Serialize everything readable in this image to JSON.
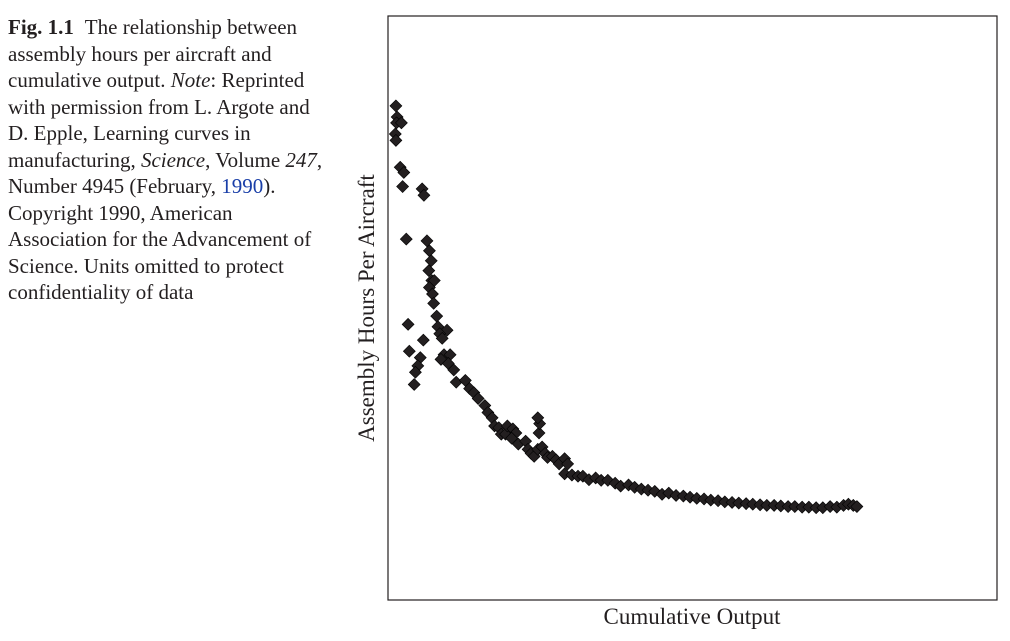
{
  "caption": {
    "label": "Fig. 1.1",
    "text_1": "The relationship between assembly hours per aircraft and cumulative output. ",
    "note_label": "Note",
    "text_2": ": Reprinted with permission from L. Argote and D. Epple, Learning curves in manufacturing, ",
    "journal": "Science",
    "text_3": ", Volume ",
    "volume": "247",
    "text_4": ", Number 4945 (February, ",
    "year_link": "1990",
    "text_5": "). Copyright 1990, American Association for the Advancement of Science. Units omitted to protect confidentiality of data",
    "link_color": "#1a3fa8"
  },
  "chart_data": {
    "type": "scatter",
    "xlabel": "Cumulative Output",
    "ylabel": "Assembly Hours Per Aircraft",
    "xlim": [
      0,
      100
    ],
    "ylim": [
      0,
      100
    ],
    "grid": false,
    "legend": "none",
    "marker": "diamond",
    "marker_color": "#231f20",
    "points": [
      [
        1.3,
        84.6
      ],
      [
        1.5,
        82.7
      ],
      [
        1.4,
        81.7
      ],
      [
        2.2,
        81.7
      ],
      [
        1.2,
        79.8
      ],
      [
        1.3,
        78.7
      ],
      [
        2.0,
        74.1
      ],
      [
        2.6,
        73.2
      ],
      [
        2.4,
        70.8
      ],
      [
        5.6,
        70.4
      ],
      [
        5.9,
        69.3
      ],
      [
        3.0,
        61.8
      ],
      [
        6.4,
        61.5
      ],
      [
        6.8,
        59.8
      ],
      [
        7.1,
        58.1
      ],
      [
        6.7,
        56.4
      ],
      [
        7.2,
        54.7
      ],
      [
        7.6,
        54.7
      ],
      [
        6.8,
        53.5
      ],
      [
        7.3,
        52.4
      ],
      [
        7.5,
        50.8
      ],
      [
        8.0,
        48.6
      ],
      [
        3.3,
        47.2
      ],
      [
        8.2,
        46.8
      ],
      [
        9.7,
        46.2
      ],
      [
        8.5,
        45.6
      ],
      [
        8.9,
        44.8
      ],
      [
        5.8,
        44.5
      ],
      [
        3.5,
        42.6
      ],
      [
        9.2,
        42.0
      ],
      [
        10.2,
        42.0
      ],
      [
        5.3,
        41.5
      ],
      [
        8.7,
        41.2
      ],
      [
        4.9,
        40.1
      ],
      [
        9.9,
        40.5
      ],
      [
        10.8,
        39.4
      ],
      [
        4.5,
        39.0
      ],
      [
        11.2,
        37.3
      ],
      [
        4.3,
        36.9
      ],
      [
        12.7,
        37.6
      ],
      [
        13.4,
        36.2
      ],
      [
        14.1,
        35.5
      ],
      [
        14.8,
        34.5
      ],
      [
        15.9,
        33.3
      ],
      [
        16.4,
        32.1
      ],
      [
        17.1,
        31.2
      ],
      [
        17.5,
        29.8
      ],
      [
        18.2,
        29.5
      ],
      [
        18.6,
        28.4
      ],
      [
        19.3,
        28.4
      ],
      [
        19.6,
        29.8
      ],
      [
        20.5,
        29.3
      ],
      [
        21.0,
        28.6
      ],
      [
        20.3,
        27.7
      ],
      [
        21.4,
        26.7
      ],
      [
        22.6,
        27.2
      ],
      [
        23.0,
        25.8
      ],
      [
        23.5,
        25.1
      ],
      [
        24.0,
        24.6
      ],
      [
        24.6,
        25.8
      ],
      [
        25.3,
        26.2
      ],
      [
        24.8,
        28.6
      ],
      [
        24.9,
        30.2
      ],
      [
        24.6,
        31.2
      ],
      [
        25.8,
        25.1
      ],
      [
        26.2,
        24.4
      ],
      [
        27.0,
        24.6
      ],
      [
        27.6,
        24.0
      ],
      [
        28.1,
        23.3
      ],
      [
        29.0,
        24.2
      ],
      [
        29.5,
        23.3
      ],
      [
        29.0,
        21.6
      ],
      [
        30.2,
        21.4
      ],
      [
        31.2,
        21.2
      ],
      [
        32.0,
        21.2
      ],
      [
        33.0,
        20.6
      ],
      [
        34.1,
        20.9
      ],
      [
        35.0,
        20.5
      ],
      [
        36.1,
        20.5
      ],
      [
        37.3,
        20.0
      ],
      [
        38.2,
        19.5
      ],
      [
        39.5,
        19.7
      ],
      [
        40.5,
        19.3
      ],
      [
        41.6,
        19.0
      ],
      [
        42.7,
        18.8
      ],
      [
        43.8,
        18.6
      ],
      [
        45.0,
        18.1
      ],
      [
        46.1,
        18.3
      ],
      [
        47.3,
        17.9
      ],
      [
        48.5,
        17.8
      ],
      [
        49.6,
        17.6
      ],
      [
        50.7,
        17.4
      ],
      [
        51.9,
        17.3
      ],
      [
        53.0,
        17.1
      ],
      [
        54.2,
        17.0
      ],
      [
        55.3,
        16.8
      ],
      [
        56.5,
        16.7
      ],
      [
        57.6,
        16.6
      ],
      [
        58.8,
        16.5
      ],
      [
        59.9,
        16.4
      ],
      [
        61.1,
        16.3
      ],
      [
        62.2,
        16.2
      ],
      [
        63.4,
        16.2
      ],
      [
        64.5,
        16.1
      ],
      [
        65.7,
        16.0
      ],
      [
        66.8,
        16.0
      ],
      [
        68.0,
        15.9
      ],
      [
        69.1,
        15.9
      ],
      [
        70.3,
        15.8
      ],
      [
        71.4,
        15.8
      ],
      [
        72.6,
        16.0
      ],
      [
        73.7,
        15.9
      ],
      [
        74.8,
        16.2
      ],
      [
        75.6,
        16.4
      ],
      [
        76.4,
        16.2
      ],
      [
        77.0,
        16.0
      ]
    ]
  }
}
